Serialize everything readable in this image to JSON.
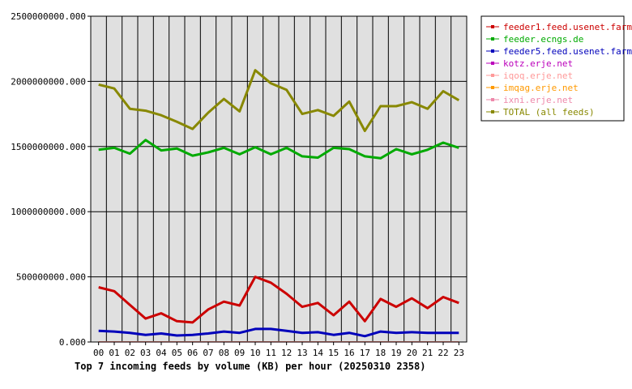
{
  "chart_data": {
    "type": "line",
    "title": "Top 7 incoming feeds by volume (KB) per hour (20250310 2358)",
    "categories": [
      "00",
      "01",
      "02",
      "03",
      "04",
      "05",
      "06",
      "07",
      "08",
      "09",
      "10",
      "11",
      "12",
      "13",
      "14",
      "15",
      "16",
      "17",
      "18",
      "19",
      "20",
      "21",
      "22",
      "23"
    ],
    "y_ticks": [
      "0.000",
      "500000000.000",
      "1000000000.000",
      "1500000000.000",
      "2000000000.000",
      "2500000000.000"
    ],
    "ylim": [
      0,
      2500000000
    ],
    "grid": true,
    "legend_position": "top-right",
    "series": [
      {
        "name": "feeder1.feed.usenet.farm",
        "color": "#cc0000",
        "values": [
          420000000,
          390000000,
          285000000,
          180000000,
          220000000,
          160000000,
          150000000,
          250000000,
          310000000,
          280000000,
          500000000,
          455000000,
          370000000,
          270000000,
          300000000,
          205000000,
          310000000,
          160000000,
          330000000,
          270000000,
          335000000,
          260000000,
          345000000,
          300000000
        ]
      },
      {
        "name": "feeder.ecngs.de",
        "color": "#00aa00",
        "values": [
          1475000000,
          1490000000,
          1445000000,
          1550000000,
          1470000000,
          1485000000,
          1430000000,
          1455000000,
          1490000000,
          1440000000,
          1495000000,
          1440000000,
          1490000000,
          1425000000,
          1415000000,
          1490000000,
          1480000000,
          1425000000,
          1410000000,
          1480000000,
          1440000000,
          1475000000,
          1530000000,
          1490000000
        ]
      },
      {
        "name": "feeder5.feed.usenet.farm",
        "color": "#0000bb",
        "values": [
          85000000,
          80000000,
          70000000,
          55000000,
          65000000,
          50000000,
          55000000,
          65000000,
          80000000,
          70000000,
          100000000,
          100000000,
          85000000,
          70000000,
          75000000,
          55000000,
          70000000,
          45000000,
          80000000,
          70000000,
          75000000,
          70000000,
          70000000,
          70000000
        ]
      },
      {
        "name": "kotz.erje.net",
        "color": "#bb00bb",
        "values": [
          2000000,
          2000000,
          2000000,
          2000000,
          2000000,
          2000000,
          2000000,
          2000000,
          2000000,
          2000000,
          2000000,
          2000000,
          2000000,
          2000000,
          2000000,
          2000000,
          2000000,
          2000000,
          2000000,
          2000000,
          2000000,
          2000000,
          2000000,
          2000000
        ]
      },
      {
        "name": "iqoq.erje.net",
        "color": "#ff9999",
        "values": [
          1500000,
          1500000,
          1500000,
          1500000,
          1500000,
          1500000,
          1500000,
          1500000,
          1500000,
          1500000,
          1500000,
          1500000,
          1500000,
          1500000,
          1500000,
          1500000,
          1500000,
          1500000,
          1500000,
          1500000,
          1500000,
          1500000,
          1500000,
          1500000
        ]
      },
      {
        "name": "imqag.erje.net",
        "color": "#ff9900",
        "values": [
          1000000,
          1000000,
          1000000,
          1000000,
          1000000,
          1000000,
          1000000,
          1000000,
          1000000,
          1000000,
          1000000,
          1000000,
          1000000,
          1000000,
          1000000,
          1000000,
          1000000,
          1000000,
          1000000,
          1000000,
          1000000,
          1000000,
          1000000,
          1000000
        ]
      },
      {
        "name": "ixni.erje.net",
        "color": "#ee88aa",
        "values": [
          800000,
          800000,
          800000,
          800000,
          800000,
          800000,
          800000,
          800000,
          800000,
          800000,
          800000,
          800000,
          800000,
          800000,
          800000,
          800000,
          800000,
          800000,
          800000,
          800000,
          800000,
          800000,
          800000,
          800000
        ]
      },
      {
        "name": "TOTAL (all feeds)",
        "color": "#888800",
        "values": [
          1975000000,
          1945000000,
          1790000000,
          1775000000,
          1740000000,
          1690000000,
          1635000000,
          1760000000,
          1865000000,
          1770000000,
          2085000000,
          1985000000,
          1935000000,
          1750000000,
          1780000000,
          1735000000,
          1845000000,
          1620000000,
          1810000000,
          1810000000,
          1840000000,
          1790000000,
          1925000000,
          1855000000
        ]
      }
    ]
  }
}
